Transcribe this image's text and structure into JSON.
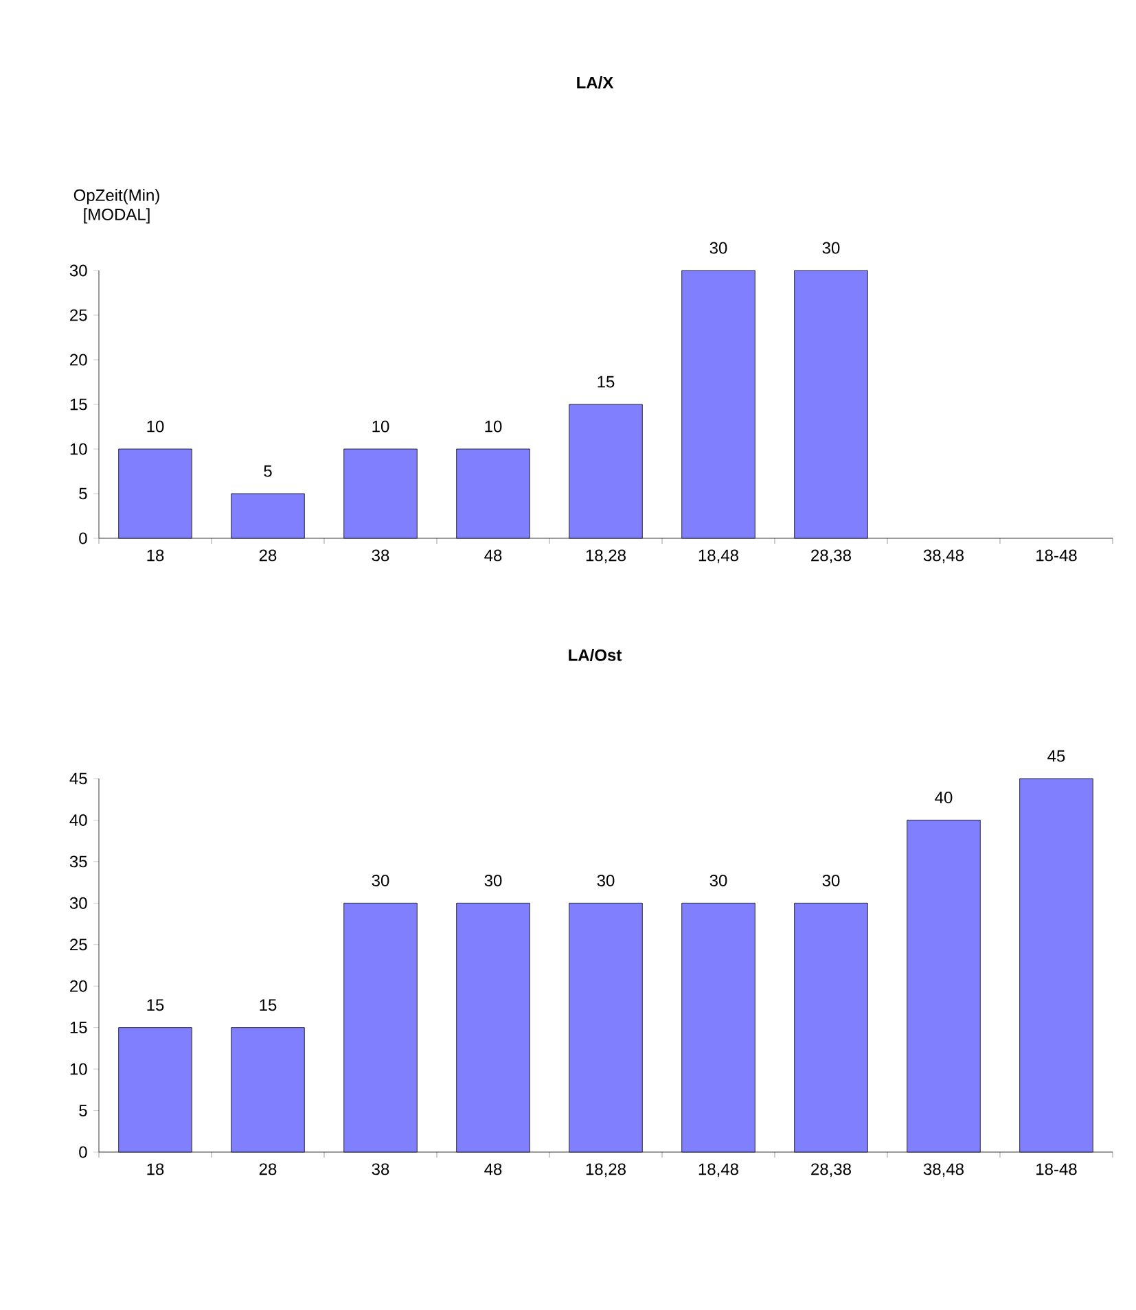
{
  "chart_data": [
    {
      "type": "bar",
      "title": "LA/X",
      "ylabel": "OpZeit(Min) [MODAL]",
      "categories": [
        "18",
        "28",
        "38",
        "48",
        "18,28",
        "18,48",
        "28,38",
        "38,48",
        "18-48"
      ],
      "values": [
        10,
        5,
        10,
        10,
        15,
        30,
        30,
        null,
        null
      ],
      "color": "#8080ff",
      "ylim": [
        0,
        30
      ],
      "yticks": [
        0,
        5,
        10,
        15,
        20,
        25,
        30
      ],
      "data_labels": true,
      "grid": false
    },
    {
      "type": "bar",
      "title": "LA/Ost",
      "categories": [
        "18",
        "28",
        "38",
        "48",
        "18,28",
        "18,48",
        "28,38",
        "38,48",
        "18-48"
      ],
      "values": [
        15,
        15,
        30,
        30,
        30,
        30,
        30,
        40,
        45
      ],
      "color": "#8080ff",
      "ylim": [
        0,
        45
      ],
      "yticks": [
        0,
        5,
        10,
        15,
        20,
        25,
        30,
        35,
        40,
        45
      ],
      "data_labels": true,
      "grid": false
    }
  ]
}
